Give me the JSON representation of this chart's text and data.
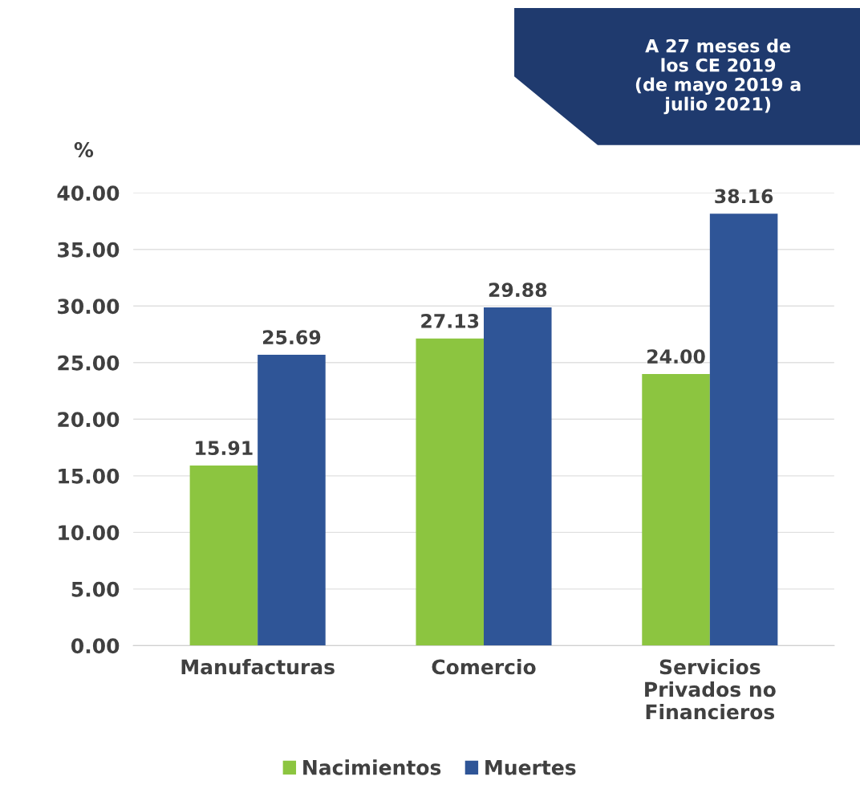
{
  "chart_data": {
    "type": "bar",
    "ylabel": "%",
    "categories": [
      "Manufacturas",
      "Comercio",
      "Servicios\nPrivados no\nFinancieros"
    ],
    "series": [
      {
        "name": "Nacimientos",
        "color": "#8cc540",
        "values": [
          15.91,
          27.13,
          24.0
        ],
        "value_labels": [
          "15.91",
          "27.13",
          "24.00"
        ]
      },
      {
        "name": "Muertes",
        "color": "#2f5597",
        "values": [
          25.69,
          29.88,
          38.16
        ],
        "value_labels": [
          "25.69",
          "29.88",
          "38.16"
        ]
      }
    ],
    "ylim": [
      0,
      40
    ],
    "yticks": [
      {
        "value": 0,
        "label": "0.00"
      },
      {
        "value": 5,
        "label": "5.00"
      },
      {
        "value": 10,
        "label": "10.00"
      },
      {
        "value": 15,
        "label": "15.00"
      },
      {
        "value": 20,
        "label": "20.00"
      },
      {
        "value": 25,
        "label": "25.00"
      },
      {
        "value": 30,
        "label": "30.00"
      },
      {
        "value": 35,
        "label": "35.00"
      },
      {
        "value": 40,
        "label": "40.00"
      }
    ],
    "grid": "y",
    "legend": "bottom",
    "annotations": [
      "A 27 meses de\nlos CE 2019\n(de mayo 2019 a\njulio 2021)"
    ]
  }
}
